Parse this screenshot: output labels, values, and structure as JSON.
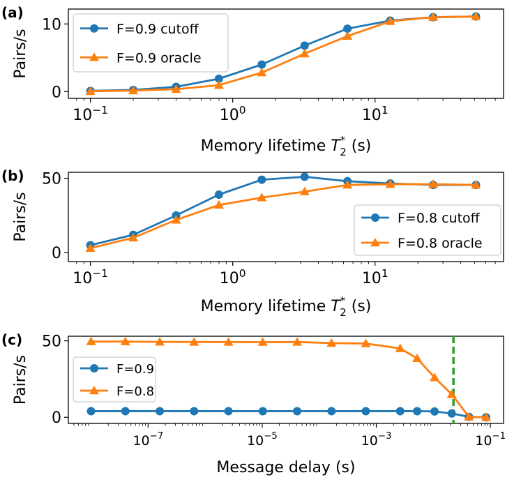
{
  "colors": {
    "series1": "#1f77b4",
    "series2": "#ff7f0e",
    "marker_line": "#2ca02c"
  },
  "chart_data": [
    {
      "panel_label": "(a)",
      "type": "line",
      "xscale": "log",
      "xlim": [
        0.07,
        80
      ],
      "ylim": [
        -1,
        12.2
      ],
      "yticks": [
        0,
        10
      ],
      "ytick_labels": [
        "0",
        "10"
      ],
      "xtick_labels": [
        {
          "base": "10",
          "exp": "−1"
        },
        {
          "base": "10",
          "exp": "0"
        },
        {
          "base": "10",
          "exp": "1"
        }
      ],
      "xlabel": {
        "text": "Memory lifetime ",
        "var": "T",
        "sub": "2",
        "sup": "*",
        "unit": " (s)"
      },
      "ylabel": "Pairs/s",
      "legend_position": "top-left",
      "x": [
        0.1,
        0.2,
        0.4,
        0.8,
        1.6,
        3.2,
        6.4,
        12.8,
        25.6,
        51.2
      ],
      "series": [
        {
          "name": "F=0.9 cutoff",
          "marker": "circle",
          "values": [
            0.1,
            0.25,
            0.7,
            1.9,
            4.0,
            6.8,
            9.3,
            10.5,
            11.0,
            11.1
          ]
        },
        {
          "name": "F=0.9 oracle",
          "marker": "triangle",
          "values": [
            0.05,
            0.15,
            0.35,
            0.95,
            2.8,
            5.6,
            8.2,
            10.4,
            11.0,
            11.1
          ]
        }
      ]
    },
    {
      "panel_label": "(b)",
      "type": "line",
      "xscale": "log",
      "xlim": [
        0.07,
        80
      ],
      "ylim": [
        -6,
        54
      ],
      "yticks": [
        0,
        50
      ],
      "ytick_labels": [
        "0",
        "50"
      ],
      "xtick_labels": [
        {
          "base": "10",
          "exp": "−1"
        },
        {
          "base": "10",
          "exp": "0"
        },
        {
          "base": "10",
          "exp": "1"
        }
      ],
      "xlabel": {
        "text": "Memory lifetime ",
        "var": "T",
        "sub": "2",
        "sup": "*",
        "unit": " (s)"
      },
      "ylabel": "Pairs/s",
      "legend_position": "lower-right",
      "x": [
        0.1,
        0.2,
        0.4,
        0.8,
        1.6,
        3.2,
        6.4,
        12.8,
        25.6,
        51.2
      ],
      "series": [
        {
          "name": "F=0.8 cutoff",
          "marker": "circle",
          "values": [
            5,
            12,
            25,
            39,
            49,
            51,
            48,
            46.5,
            45.5,
            45.5
          ]
        },
        {
          "name": "F=0.8 oracle",
          "marker": "triangle",
          "values": [
            3,
            10,
            22,
            32,
            37,
            41,
            45.5,
            46,
            46,
            45.5
          ]
        }
      ]
    },
    {
      "panel_label": "(c)",
      "type": "line",
      "xscale": "log",
      "xlim": [
        4e-09,
        0.17
      ],
      "ylim": [
        -4,
        53
      ],
      "yticks": [
        0,
        50
      ],
      "ytick_labels": [
        "0",
        "50"
      ],
      "xtick_labels": [
        {
          "base": "10",
          "exp": "−7"
        },
        {
          "base": "10",
          "exp": "−5"
        },
        {
          "base": "10",
          "exp": "−3"
        },
        {
          "base": "10",
          "exp": "−1"
        }
      ],
      "xlabel": {
        "text": "Message delay (s)"
      },
      "ylabel": "Pairs/s",
      "legend_position": "center-left",
      "vline_x": 0.0225,
      "x": [
        1e-08,
        4e-08,
        1.6e-07,
        6.4e-07,
        2.56e-06,
        1.024e-05,
        4.1e-05,
        0.000164,
        0.000655,
        0.00262,
        0.0052,
        0.0105,
        0.021,
        0.042,
        0.084
      ],
      "series": [
        {
          "name": "F=0.9",
          "marker": "circle",
          "values": [
            4,
            4,
            4,
            4,
            4,
            4,
            4,
            4,
            4,
            4,
            4,
            3.8,
            2.5,
            0.3,
            0
          ]
        },
        {
          "name": "F=0.8",
          "marker": "triangle",
          "values": [
            49.5,
            49.5,
            49.3,
            49.2,
            49.2,
            49.1,
            49.2,
            48.5,
            48.2,
            45,
            38.5,
            26,
            15,
            0.3,
            0
          ]
        }
      ]
    }
  ]
}
